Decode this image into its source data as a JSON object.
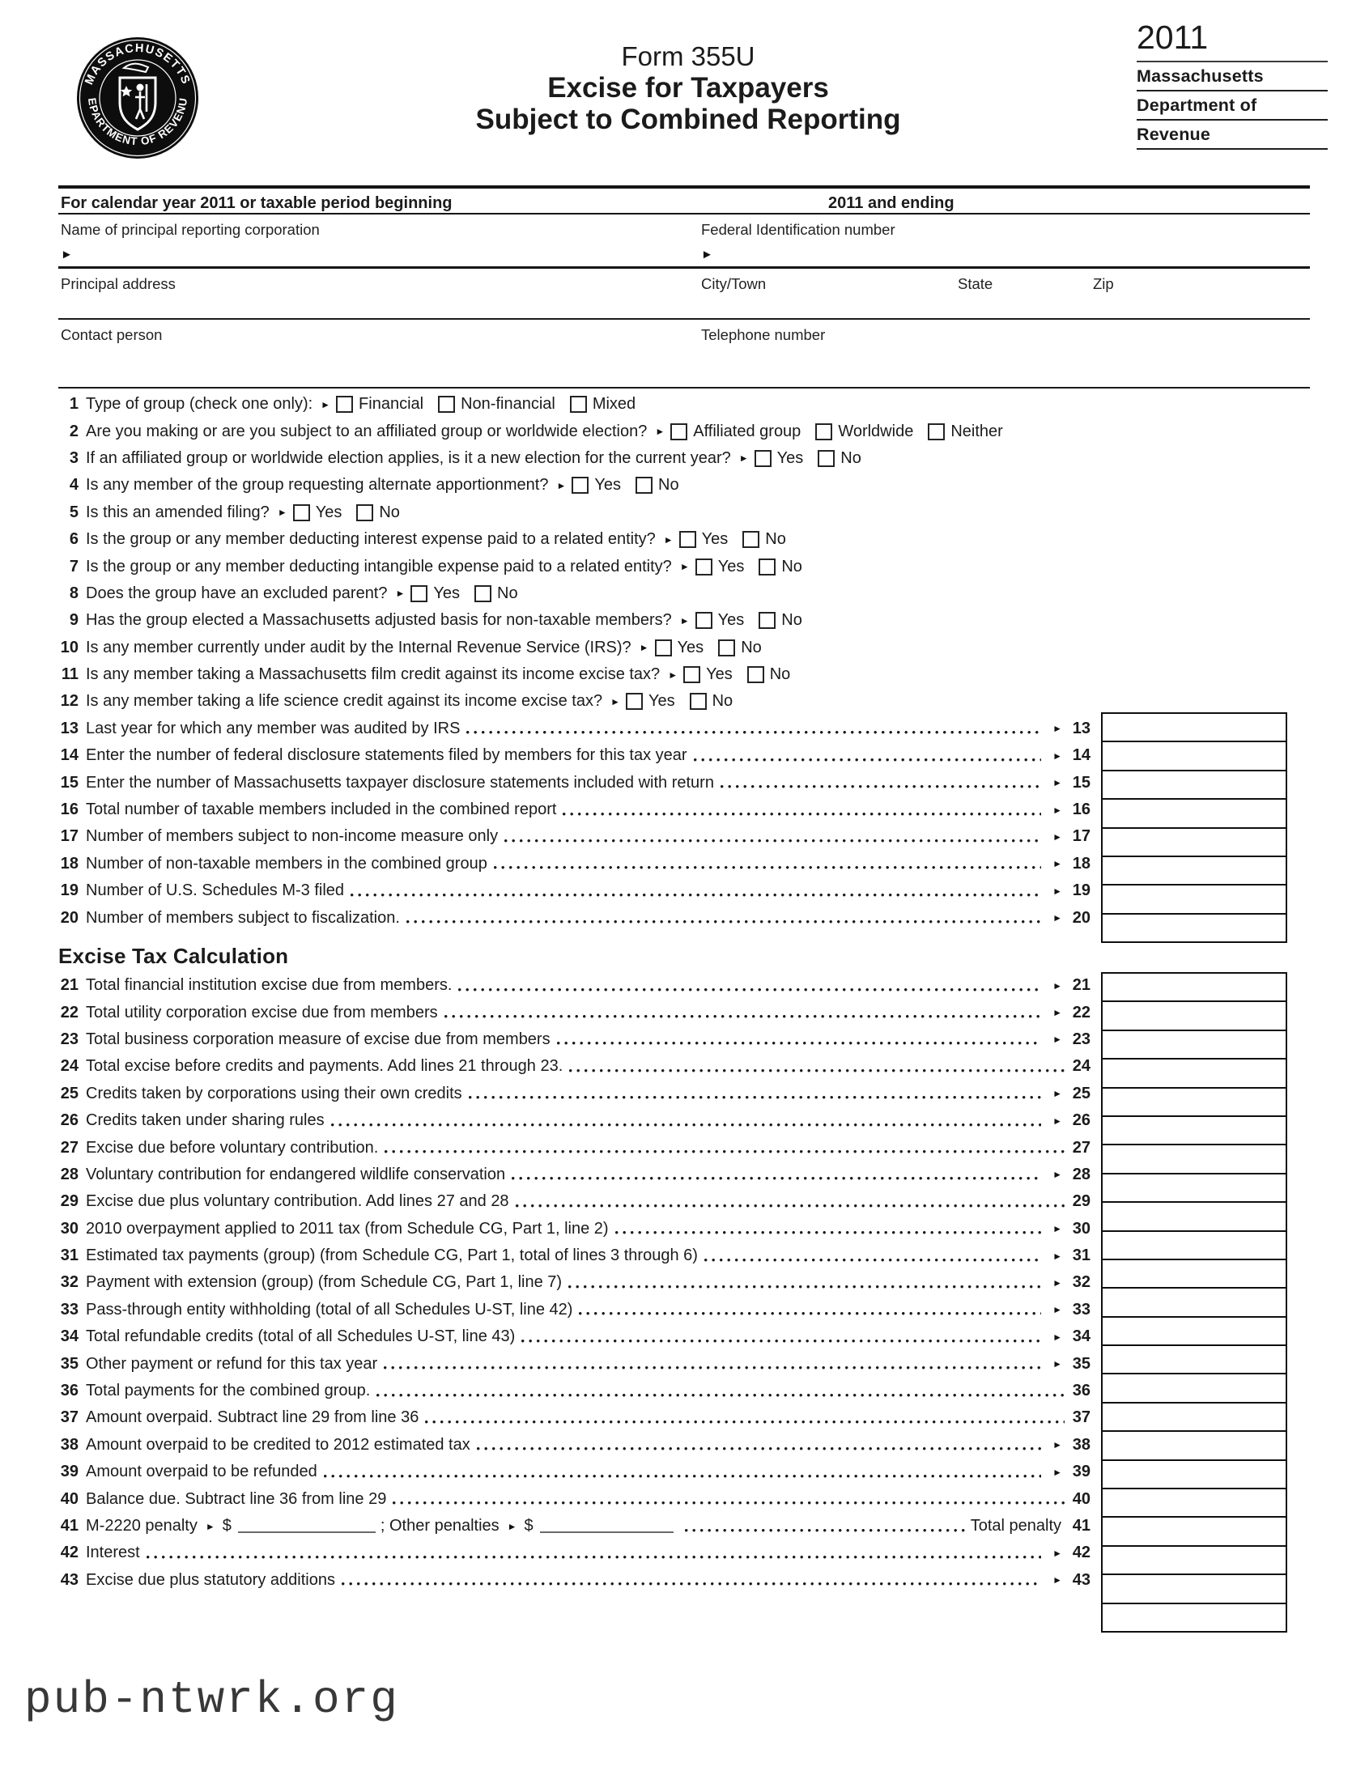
{
  "icons": {
    "arrow": "►"
  },
  "page": {
    "year": "2011",
    "form_number": "Form 355U",
    "title_line1": "Excise for Taxpayers",
    "title_line2": "Subject to Combined Reporting",
    "agency_lines": [
      "Massachusetts",
      "Department of",
      "Revenue"
    ],
    "seal_top": "MASSACHUSETTS",
    "seal_bottom": "DEPARTMENT OF REVENUE",
    "watermark": "pub-ntwrk.org"
  },
  "header_fields": {
    "period_left": "For calendar year 2011 or taxable period beginning",
    "period_right": "2011 and ending",
    "name_label": "Name of principal reporting corporation",
    "fid_label": "Federal Identification number",
    "address_label": "Principal address",
    "city_label": "City/Town",
    "state_label": "State",
    "zip_label": "Zip",
    "contact_label": "Contact person",
    "phone_label": "Telephone number"
  },
  "questions": [
    {
      "num": "1",
      "text": "Type of group (check one only):",
      "options": [
        "Financial",
        "Non-financial",
        "Mixed"
      ]
    },
    {
      "num": "2",
      "text": "Are you making or are you subject to an affiliated group or worldwide election?",
      "options": [
        "Affiliated group",
        "Worldwide",
        "Neither"
      ]
    },
    {
      "num": "3",
      "text": "If an affiliated group or worldwide election applies, is it a new election for the current year?",
      "options": [
        "Yes",
        "No"
      ]
    },
    {
      "num": "4",
      "text": "Is any member of the group requesting alternate apportionment?",
      "options": [
        "Yes",
        "No"
      ]
    },
    {
      "num": "5",
      "text": "Is this an amended filing?",
      "options": [
        "Yes",
        "No"
      ]
    },
    {
      "num": "6",
      "text": "Is the group or any member deducting interest expense paid to a related entity?",
      "options": [
        "Yes",
        "No"
      ]
    },
    {
      "num": "7",
      "text": "Is the group or any member deducting intangible expense paid to a related entity?",
      "options": [
        "Yes",
        "No"
      ]
    },
    {
      "num": "8",
      "text": "Does the group have an excluded parent?",
      "options": [
        "Yes",
        "No"
      ]
    },
    {
      "num": "9",
      "text": "Has the group elected a Massachusetts adjusted basis for non-taxable members?",
      "options": [
        "Yes",
        "No"
      ]
    },
    {
      "num": "10",
      "text": "Is any member currently under audit by the Internal Revenue Service (IRS)?",
      "options": [
        "Yes",
        "No"
      ]
    },
    {
      "num": "11",
      "text": "Is any member taking a Massachusetts film credit against its income excise tax?",
      "options": [
        "Yes",
        "No"
      ]
    },
    {
      "num": "12",
      "text": "Is any member taking a life science credit against its income excise tax?",
      "options": [
        "Yes",
        "No"
      ]
    }
  ],
  "count_lines": [
    {
      "num": "13",
      "text": "Last year for which any member was audited by IRS",
      "arrow": true
    },
    {
      "num": "14",
      "text": "Enter the number of federal disclosure statements filed by members for this tax year",
      "arrow": true
    },
    {
      "num": "15",
      "text": "Enter the number of Massachusetts taxpayer disclosure statements included with return",
      "arrow": true
    },
    {
      "num": "16",
      "text": "Total number of taxable members included in the combined report",
      "arrow": true
    },
    {
      "num": "17",
      "text": "Number of members subject to non-income measure only",
      "arrow": true
    },
    {
      "num": "18",
      "text": "Number of non-taxable members in the combined group",
      "arrow": true
    },
    {
      "num": "19",
      "text": "Number of U.S. Schedules M-3 filed",
      "arrow": true
    },
    {
      "num": "20",
      "text": "Number of members subject to fiscalization.",
      "arrow": true
    }
  ],
  "excise_section": {
    "heading": "Excise Tax Calculation",
    "lines": [
      {
        "num": "21",
        "text": "Total financial institution excise due from members.",
        "arrow": true
      },
      {
        "num": "22",
        "text": "Total utility corporation excise due from members",
        "arrow": true
      },
      {
        "num": "23",
        "text": "Total business corporation measure of excise due from members",
        "arrow": true
      },
      {
        "num": "24",
        "text": "Total excise before credits and payments. Add lines 21 through 23.",
        "arrow": false
      },
      {
        "num": "25",
        "text": "Credits taken by corporations using their own credits",
        "arrow": true
      },
      {
        "num": "26",
        "text": "Credits taken under sharing rules",
        "arrow": true
      },
      {
        "num": "27",
        "text": "Excise due before voluntary contribution.",
        "arrow": false
      },
      {
        "num": "28",
        "text": "Voluntary contribution for endangered wildlife conservation",
        "arrow": true
      },
      {
        "num": "29",
        "text": "Excise due plus voluntary contribution. Add lines 27 and 28",
        "arrow": false
      },
      {
        "num": "30",
        "text": "2010 overpayment applied to 2011 tax (from Schedule CG, Part 1, line 2)",
        "arrow": true
      },
      {
        "num": "31",
        "text": "Estimated tax payments (group) (from Schedule CG, Part 1, total of lines 3 through 6)",
        "arrow": true
      },
      {
        "num": "32",
        "text": "Payment with extension (group) (from Schedule CG, Part 1, line 7)",
        "arrow": true
      },
      {
        "num": "33",
        "text": "Pass-through entity withholding (total of all Schedules U-ST, line 42)",
        "arrow": true
      },
      {
        "num": "34",
        "text": "Total refundable credits (total of all Schedules U-ST, line 43)",
        "arrow": true
      },
      {
        "num": "35",
        "text": "Other payment or refund for this tax year",
        "arrow": true
      },
      {
        "num": "36",
        "text": "Total payments for the combined group.",
        "arrow": false
      },
      {
        "num": "37",
        "text": "Amount overpaid. Subtract line 29 from line 36",
        "arrow": false
      },
      {
        "num": "38",
        "text": "Amount overpaid to be credited to 2012 estimated tax",
        "arrow": true
      },
      {
        "num": "39",
        "text": "Amount overpaid to be refunded",
        "arrow": true
      },
      {
        "num": "40",
        "text": "Balance due. Subtract line 36 from line 29",
        "arrow": false
      },
      {
        "num": "41",
        "special": "penalty",
        "parts": {
          "label1": "M-2220 penalty",
          "dollar1": "$",
          "label2": "; Other penalties",
          "dollar2": "$",
          "label3": "Total penalty"
        }
      },
      {
        "num": "42",
        "text": "Interest",
        "arrow": true
      },
      {
        "num": "43",
        "text": "Excise due plus statutory additions",
        "arrow": true
      }
    ]
  }
}
